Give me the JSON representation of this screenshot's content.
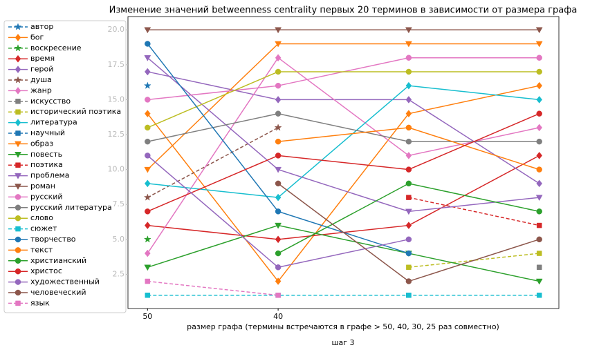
{
  "chart_data": {
    "type": "line",
    "title": "Изменение значений betweenness centrality первых 20 терминов в зависимости от размера графа",
    "xlabel": "размер графа (термины встречаются в графе > 50, 40, 30, 25 раз совместно)",
    "footer": "шаг 3",
    "categories": [
      "50",
      "40",
      null,
      null
    ],
    "ylim": [
      0.05,
      20.95
    ],
    "yticks": [
      2.5,
      {
        "value": 5,
        "label": "5.0"
      },
      7.5,
      {
        "value": 10,
        "label": "10.0"
      },
      12.5,
      {
        "value": 15,
        "label": "15.0"
      },
      17.5,
      {
        "value": 20,
        "label": "20.0"
      }
    ],
    "legend": "outside-left",
    "series": [
      {
        "name": "автор",
        "color": "#1f77b4",
        "marker": "star",
        "linestyle": "dashed",
        "values": [
          16,
          null,
          null,
          null
        ]
      },
      {
        "name": "бог",
        "color": "#ff7f0e",
        "marker": "diamond",
        "linestyle": "solid",
        "values": [
          14,
          2,
          14,
          16
        ]
      },
      {
        "name": "воскресение",
        "color": "#2ca02c",
        "marker": "star",
        "linestyle": "dashed",
        "values": [
          5,
          null,
          null,
          null
        ]
      },
      {
        "name": "время",
        "color": "#d62728",
        "marker": "diamond",
        "linestyle": "solid",
        "values": [
          6,
          5,
          6,
          11
        ]
      },
      {
        "name": "герой",
        "color": "#9467bd",
        "marker": "diamond",
        "linestyle": "solid",
        "values": [
          17,
          15,
          15,
          9
        ]
      },
      {
        "name": "душа",
        "color": "#8c564b",
        "marker": "star",
        "linestyle": "dashed",
        "values": [
          8,
          13,
          null,
          null
        ]
      },
      {
        "name": "жанр",
        "color": "#e377c2",
        "marker": "diamond",
        "linestyle": "solid",
        "values": [
          4,
          18,
          11,
          13
        ]
      },
      {
        "name": "искусство",
        "color": "#7f7f7f",
        "marker": "square",
        "linestyle": "dashed",
        "values": [
          null,
          null,
          null,
          3
        ]
      },
      {
        "name": "исторический поэтика",
        "color": "#bcbd22",
        "marker": "square",
        "linestyle": "dashed",
        "values": [
          null,
          null,
          3,
          4
        ]
      },
      {
        "name": "литература",
        "color": "#17becf",
        "marker": "diamond",
        "linestyle": "solid",
        "values": [
          9,
          8,
          16,
          15
        ]
      },
      {
        "name": "научный",
        "color": "#1f77b4",
        "marker": "square",
        "linestyle": "dashed",
        "values": [
          null,
          null,
          1,
          null
        ]
      },
      {
        "name": "образ",
        "color": "#ff7f0e",
        "marker": "tri",
        "linestyle": "solid",
        "values": [
          10,
          19,
          19,
          19
        ]
      },
      {
        "name": "повесть",
        "color": "#2ca02c",
        "marker": "tri",
        "linestyle": "solid",
        "values": [
          3,
          6,
          4,
          2
        ]
      },
      {
        "name": "поэтика",
        "color": "#d62728",
        "marker": "square",
        "linestyle": "dashed",
        "values": [
          null,
          null,
          8,
          6
        ]
      },
      {
        "name": "проблема",
        "color": "#9467bd",
        "marker": "tri",
        "linestyle": "solid",
        "values": [
          18,
          10,
          7,
          8
        ]
      },
      {
        "name": "роман",
        "color": "#8c564b",
        "marker": "tri",
        "linestyle": "solid",
        "values": [
          20,
          20,
          20,
          20
        ]
      },
      {
        "name": "русский",
        "color": "#e377c2",
        "marker": "circle",
        "linestyle": "solid",
        "values": [
          15,
          16,
          18,
          18
        ]
      },
      {
        "name": "русский литература",
        "color": "#7f7f7f",
        "marker": "circle",
        "linestyle": "solid",
        "values": [
          12,
          14,
          12,
          12
        ]
      },
      {
        "name": "слово",
        "color": "#bcbd22",
        "marker": "circle",
        "linestyle": "solid",
        "values": [
          13,
          17,
          17,
          17
        ]
      },
      {
        "name": "сюжет",
        "color": "#17becf",
        "marker": "square",
        "linestyle": "dashed",
        "values": [
          1,
          1,
          1,
          1
        ]
      },
      {
        "name": "творчество",
        "color": "#1f77b4",
        "marker": "circle",
        "linestyle": "solid",
        "values": [
          19,
          7,
          4,
          null
        ]
      },
      {
        "name": "текст",
        "color": "#ff7f0e",
        "marker": "circle",
        "linestyle": "solid",
        "values": [
          null,
          12,
          13,
          10
        ]
      },
      {
        "name": "христианский",
        "color": "#2ca02c",
        "marker": "circle",
        "linestyle": "solid",
        "values": [
          null,
          4,
          9,
          7
        ]
      },
      {
        "name": "христос",
        "color": "#d62728",
        "marker": "circle",
        "linestyle": "solid",
        "values": [
          7,
          11,
          10,
          14
        ]
      },
      {
        "name": "художественный",
        "color": "#9467bd",
        "marker": "circle",
        "linestyle": "solid",
        "values": [
          11,
          3,
          5,
          null
        ]
      },
      {
        "name": "человеческий",
        "color": "#8c564b",
        "marker": "circle",
        "linestyle": "solid",
        "values": [
          null,
          9,
          2,
          5
        ]
      },
      {
        "name": "язык",
        "color": "#e377c2",
        "marker": "square",
        "linestyle": "dashed",
        "values": [
          2,
          1,
          null,
          null
        ]
      }
    ]
  }
}
